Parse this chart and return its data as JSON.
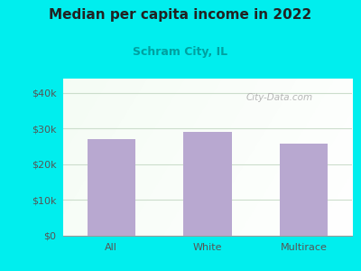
{
  "title": "Median per capita income in 2022",
  "subtitle": "Schram City, IL",
  "categories": [
    "All",
    "White",
    "Multirace"
  ],
  "values": [
    27000,
    29000,
    25800
  ],
  "bar_color": "#b8a8d0",
  "title_fontsize": 11,
  "subtitle_fontsize": 9,
  "subtitle_color": "#00a0a0",
  "outer_bg_color": "#00eeee",
  "ylabel_ticks": [
    0,
    10000,
    20000,
    30000,
    40000
  ],
  "ylabel_labels": [
    "$0",
    "$10k",
    "$20k",
    "$30k",
    "$40k"
  ],
  "ylim": [
    0,
    44000
  ],
  "tick_color": "#555555",
  "watermark": "City-Data.com",
  "watermark_color": "#aaaaaa",
  "grid_color": "#ccddcc"
}
